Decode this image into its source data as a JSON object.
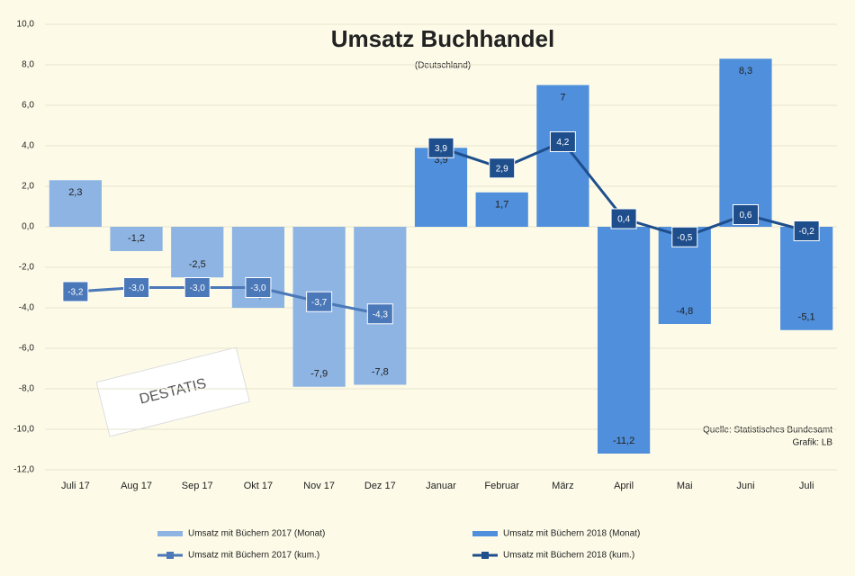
{
  "chart_data": {
    "type": "bar",
    "title": "Umsatz Buchhandel",
    "subtitle": "(Deutschland)",
    "categories": [
      "Juli 17",
      "Aug 17",
      "Sep 17",
      "Okt 17",
      "Nov 17",
      "Dez 17",
      "Januar",
      "Februar",
      "März",
      "April",
      "Mai",
      "Juni",
      "Juli"
    ],
    "ylim": [
      -12,
      10
    ],
    "yticks": [
      {
        "value": 10,
        "label": "10,0"
      },
      {
        "value": 8,
        "label": "8,0"
      },
      {
        "value": 6,
        "label": "6,0"
      },
      {
        "value": 4,
        "label": "4,0"
      },
      {
        "value": 2,
        "label": "2,0"
      },
      {
        "value": 0,
        "label": "0,0"
      },
      {
        "value": -2,
        "label": "-2,0"
      },
      {
        "value": -4,
        "label": "-4,0"
      },
      {
        "value": -6,
        "label": "-6,0"
      },
      {
        "value": -8,
        "label": "-8,0"
      },
      {
        "value": -10,
        "label": "-10,0"
      },
      {
        "value": -12,
        "label": "-12,0"
      }
    ],
    "grid": true,
    "series": [
      {
        "name": "Umsatz mit Büchern 2017 (Monat)",
        "kind": "bar",
        "color": "#8db4e2",
        "values": [
          2.3,
          -1.2,
          -2.5,
          -4.0,
          -7.9,
          -7.8,
          null,
          null,
          null,
          null,
          null,
          null,
          null
        ],
        "value_labels": [
          "2,3",
          "-1,2",
          "-2,5",
          "-4,0",
          "-7,9",
          "-7,8",
          null,
          null,
          null,
          null,
          null,
          null,
          null
        ]
      },
      {
        "name": "Umsatz mit Büchern 2018 (Monat)",
        "kind": "bar",
        "color": "#4f8fdc",
        "values": [
          null,
          null,
          null,
          null,
          null,
          null,
          3.9,
          1.7,
          7,
          -11.2,
          -4.8,
          8.3,
          -5.1
        ],
        "value_labels": [
          null,
          null,
          null,
          null,
          null,
          null,
          "3,9",
          "1,7",
          "7",
          "-11,2",
          "-4,8",
          "8,3",
          "-5,1"
        ]
      },
      {
        "name": "Umsatz mit Büchern 2017 (kum.)",
        "kind": "line",
        "color": "#4a78b8",
        "values": [
          -3.2,
          -3.0,
          -3.0,
          -3.0,
          -3.7,
          -4.3,
          null,
          null,
          null,
          null,
          null,
          null,
          null
        ],
        "value_labels": [
          "-3,2",
          "-3,0",
          "-3,0",
          "-3,0",
          "-3,7",
          "-4,3",
          null,
          null,
          null,
          null,
          null,
          null,
          null
        ]
      },
      {
        "name": "Umsatz mit Büchern 2018 (kum.)",
        "kind": "line",
        "color": "#1f4e8c",
        "values": [
          null,
          null,
          null,
          null,
          null,
          null,
          3.9,
          2.9,
          4.2,
          0.4,
          -0.5,
          0.6,
          -0.2
        ],
        "value_labels": [
          null,
          null,
          null,
          null,
          null,
          null,
          "3,9",
          "2,9",
          "4,2",
          "0,4",
          "-0,5",
          "0,6",
          "-0,2"
        ]
      }
    ],
    "source": "Quelle: Statistisches Bundesamt",
    "credit": "Grafik: LB",
    "logo": "DESTATIS"
  }
}
